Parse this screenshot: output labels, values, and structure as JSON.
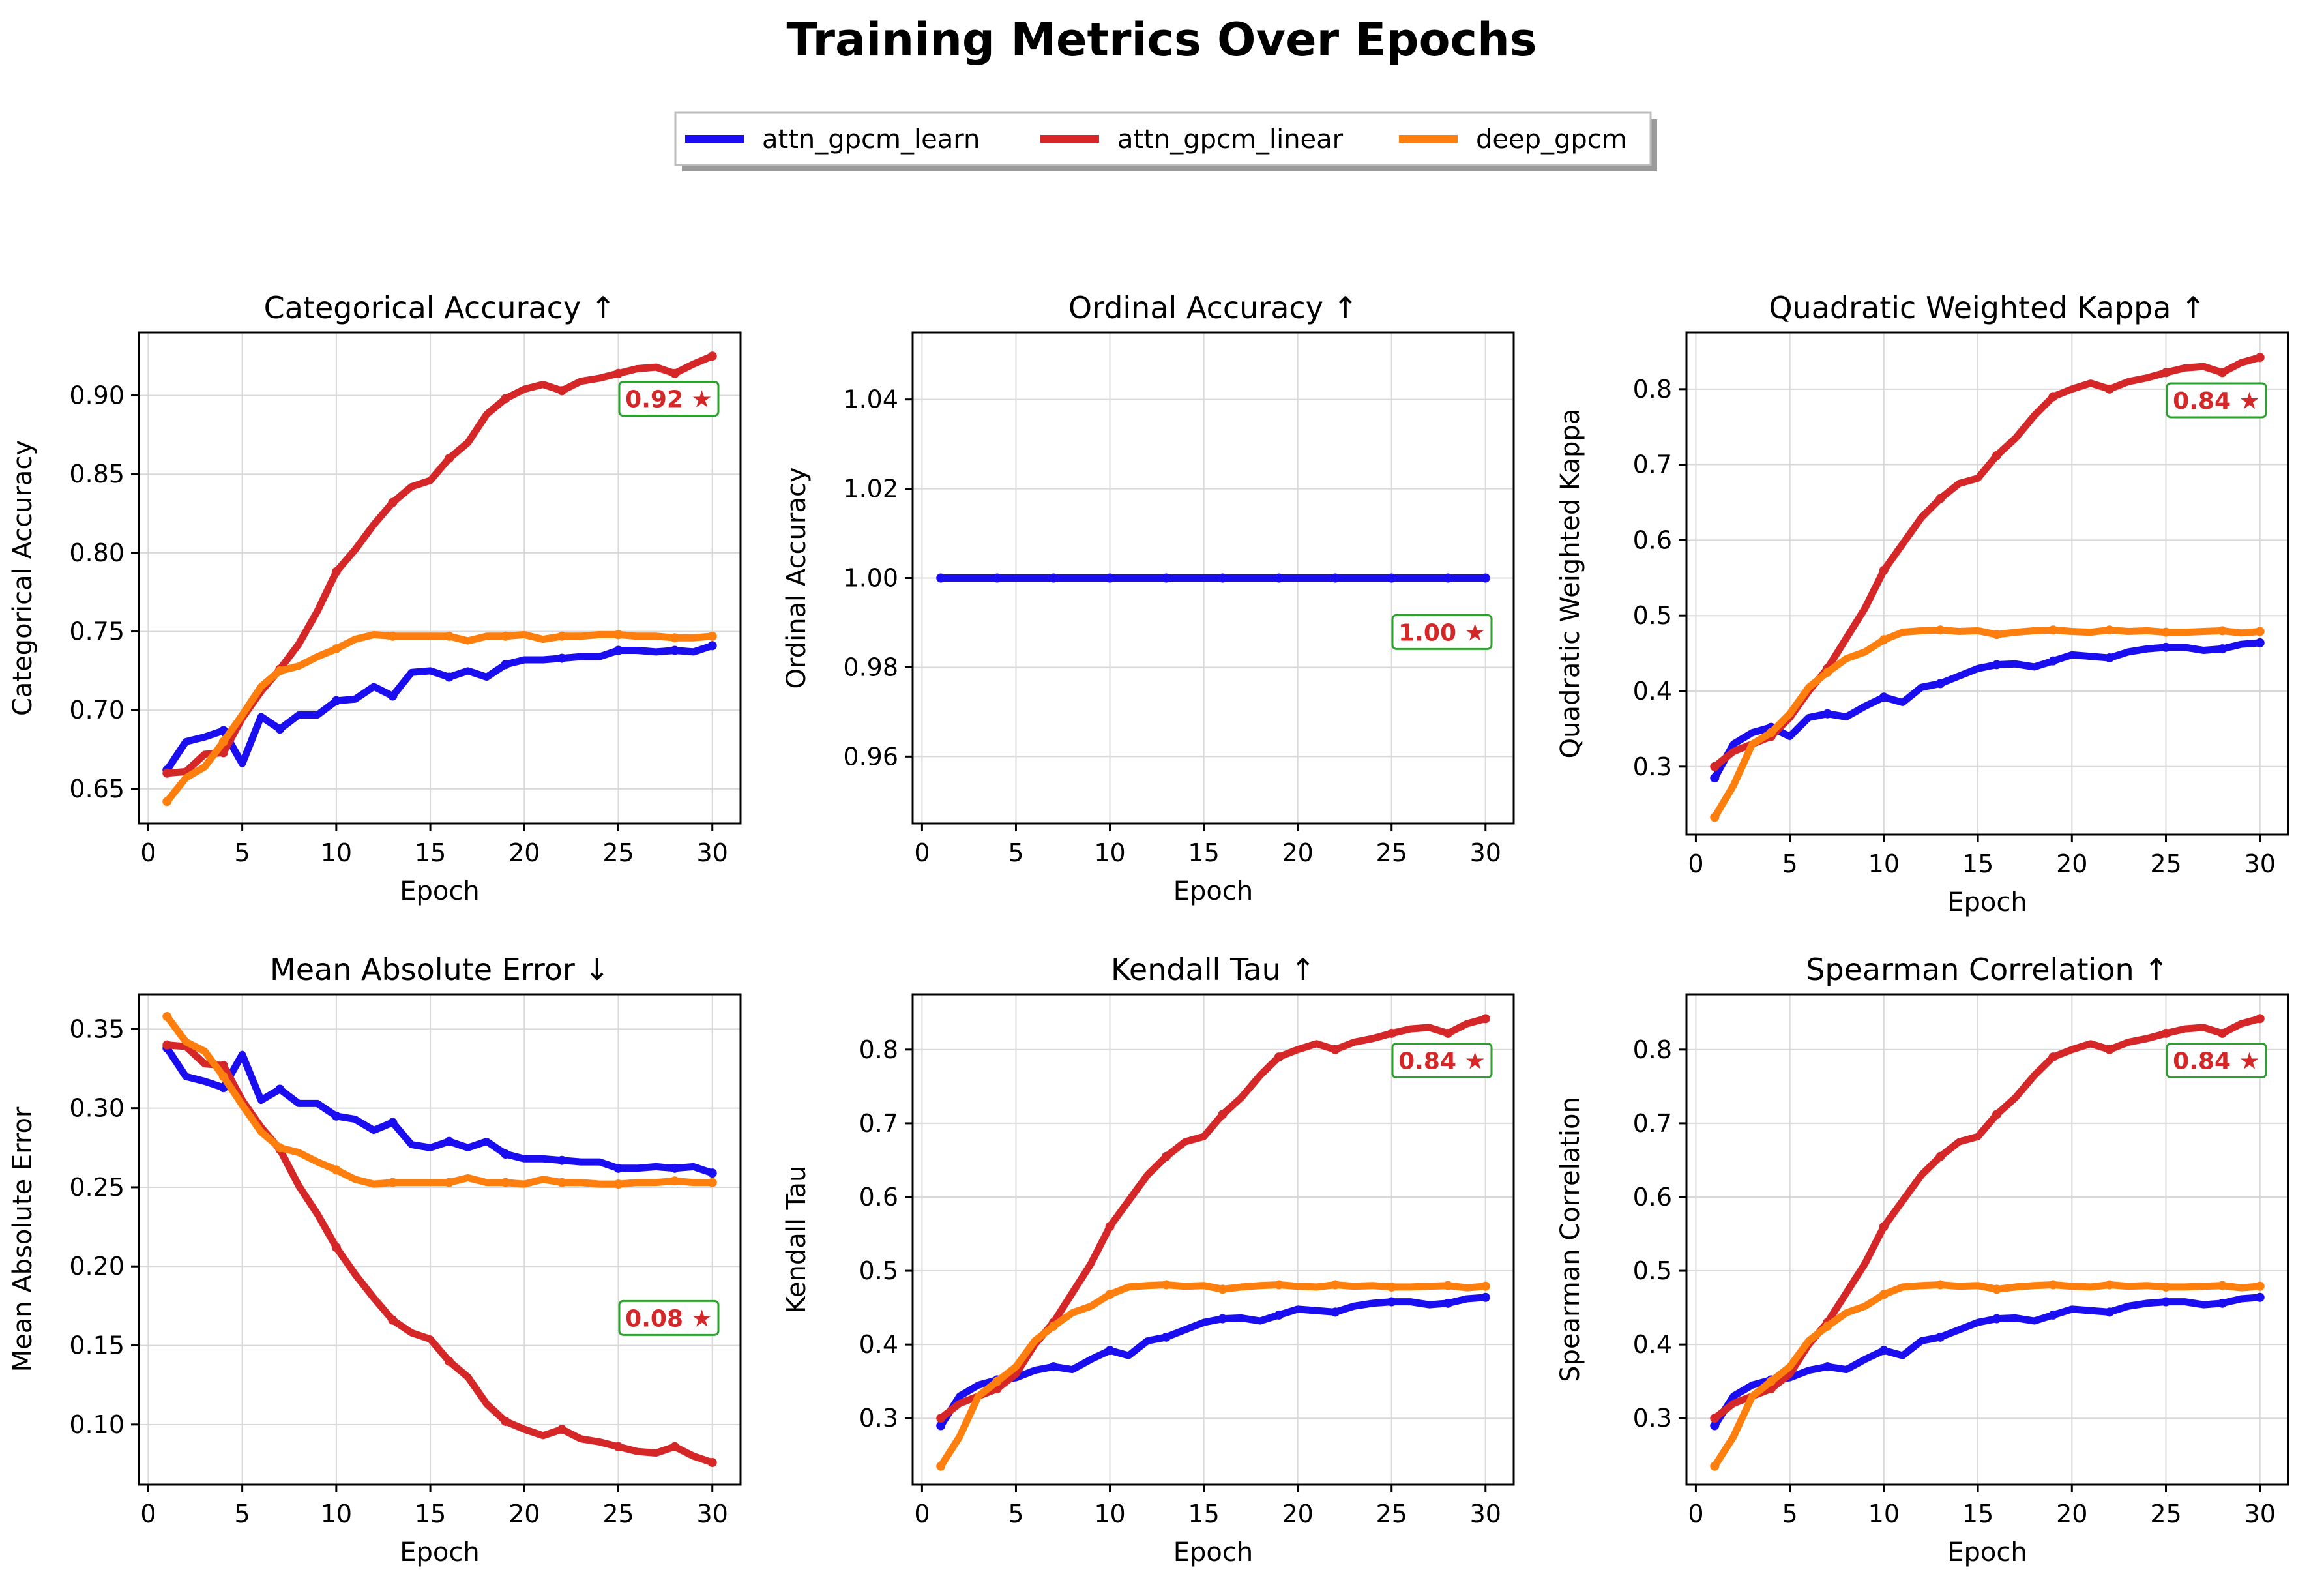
{
  "figure": {
    "title": "Training Metrics Over Epochs"
  },
  "legend": {
    "placement": "top-center",
    "entries": [
      {
        "name": "attn_gpcm_learn",
        "color": "#1a0df0"
      },
      {
        "name": "attn_gpcm_linear",
        "color": "#d62728"
      },
      {
        "name": "deep_gpcm",
        "color": "#ff7f0e"
      }
    ]
  },
  "colors": {
    "attn_gpcm_learn": "#1a0df0",
    "attn_gpcm_linear": "#d62728",
    "deep_gpcm": "#ff7f0e",
    "best_text": "#d62728",
    "best_border": "#2ca02c",
    "grid": "#d9d9d9"
  },
  "chart_data": [
    {
      "type": "line",
      "title": "Categorical Accuracy ↑",
      "xlabel": "Epoch",
      "ylabel": "Categorical Accuracy",
      "grid": true,
      "xlim": [
        -0.5,
        31.5
      ],
      "ylim": [
        0.628,
        0.94
      ],
      "xticks": [
        0,
        5,
        10,
        15,
        20,
        25,
        30
      ],
      "yticks": [
        0.65,
        0.7,
        0.75,
        0.8,
        0.85,
        0.9
      ],
      "tick_decimals": 2,
      "best_label": "0.92 ★",
      "x": [
        1,
        2,
        3,
        4,
        5,
        6,
        7,
        8,
        9,
        10,
        11,
        12,
        13,
        14,
        15,
        16,
        17,
        18,
        19,
        20,
        21,
        22,
        23,
        24,
        25,
        26,
        27,
        28,
        29,
        30
      ],
      "series": [
        {
          "name": "attn_gpcm_learn",
          "values": [
            0.662,
            0.68,
            0.683,
            0.687,
            0.666,
            0.696,
            0.688,
            0.697,
            0.697,
            0.706,
            0.707,
            0.715,
            0.709,
            0.724,
            0.725,
            0.721,
            0.725,
            0.721,
            0.729,
            0.732,
            0.732,
            0.733,
            0.734,
            0.734,
            0.738,
            0.738,
            0.737,
            0.738,
            0.737,
            0.741
          ]
        },
        {
          "name": "attn_gpcm_linear",
          "values": [
            0.66,
            0.661,
            0.672,
            0.673,
            0.695,
            0.712,
            0.726,
            0.742,
            0.763,
            0.788,
            0.802,
            0.818,
            0.832,
            0.842,
            0.846,
            0.86,
            0.87,
            0.888,
            0.898,
            0.904,
            0.907,
            0.903,
            0.909,
            0.911,
            0.914,
            0.917,
            0.918,
            0.914,
            0.92,
            0.925
          ]
        },
        {
          "name": "deep_gpcm",
          "values": [
            0.642,
            0.657,
            0.664,
            0.68,
            0.697,
            0.715,
            0.725,
            0.728,
            0.734,
            0.739,
            0.745,
            0.748,
            0.747,
            0.747,
            0.747,
            0.747,
            0.744,
            0.747,
            0.747,
            0.748,
            0.745,
            0.747,
            0.747,
            0.748,
            0.748,
            0.747,
            0.747,
            0.746,
            0.746,
            0.747
          ]
        }
      ]
    },
    {
      "type": "line",
      "title": "Ordinal Accuracy ↑",
      "xlabel": "Epoch",
      "ylabel": "Ordinal Accuracy",
      "grid": true,
      "xlim": [
        -0.5,
        31.5
      ],
      "ylim": [
        0.945,
        1.055
      ],
      "xticks": [
        0,
        5,
        10,
        15,
        20,
        25,
        30
      ],
      "yticks": [
        0.96,
        0.98,
        1.0,
        1.02,
        1.04
      ],
      "tick_decimals": 2,
      "best_label": "1.00 ★",
      "x": [
        1,
        2,
        3,
        4,
        5,
        6,
        7,
        8,
        9,
        10,
        11,
        12,
        13,
        14,
        15,
        16,
        17,
        18,
        19,
        20,
        21,
        22,
        23,
        24,
        25,
        26,
        27,
        28,
        29,
        30
      ],
      "series": [
        {
          "name": "attn_gpcm_learn",
          "values": [
            1.0,
            1.0,
            1.0,
            1.0,
            1.0,
            1.0,
            1.0,
            1.0,
            1.0,
            1.0,
            1.0,
            1.0,
            1.0,
            1.0,
            1.0,
            1.0,
            1.0,
            1.0,
            1.0,
            1.0,
            1.0,
            1.0,
            1.0,
            1.0,
            1.0,
            1.0,
            1.0,
            1.0,
            1.0,
            1.0
          ]
        }
      ]
    },
    {
      "type": "line",
      "title": "Quadratic Weighted Kappa ↑",
      "xlabel": "Epoch",
      "ylabel": "Quadratic Weighted Kappa",
      "grid": true,
      "xlim": [
        -0.5,
        31.5
      ],
      "ylim": [
        0.21,
        0.875
      ],
      "xticks": [
        0,
        5,
        10,
        15,
        20,
        25,
        30
      ],
      "yticks": [
        0.3,
        0.4,
        0.5,
        0.6,
        0.7,
        0.8
      ],
      "tick_decimals": 1,
      "best_label": "0.84 ★",
      "x": [
        1,
        2,
        3,
        4,
        5,
        6,
        7,
        8,
        9,
        10,
        11,
        12,
        13,
        14,
        15,
        16,
        17,
        18,
        19,
        20,
        21,
        22,
        23,
        24,
        25,
        26,
        27,
        28,
        29,
        30
      ],
      "series": [
        {
          "name": "attn_gpcm_learn",
          "values": [
            0.285,
            0.33,
            0.345,
            0.352,
            0.34,
            0.365,
            0.37,
            0.366,
            0.38,
            0.392,
            0.385,
            0.405,
            0.41,
            0.42,
            0.43,
            0.435,
            0.436,
            0.432,
            0.44,
            0.448,
            0.446,
            0.444,
            0.452,
            0.456,
            0.458,
            0.458,
            0.454,
            0.456,
            0.462,
            0.464
          ]
        },
        {
          "name": "attn_gpcm_linear",
          "values": [
            0.3,
            0.32,
            0.33,
            0.34,
            0.365,
            0.4,
            0.43,
            0.47,
            0.51,
            0.56,
            0.595,
            0.63,
            0.655,
            0.675,
            0.682,
            0.712,
            0.735,
            0.765,
            0.79,
            0.8,
            0.808,
            0.8,
            0.81,
            0.815,
            0.822,
            0.828,
            0.83,
            0.822,
            0.835,
            0.842
          ]
        },
        {
          "name": "deep_gpcm",
          "values": [
            0.233,
            0.275,
            0.33,
            0.345,
            0.37,
            0.405,
            0.425,
            0.443,
            0.452,
            0.468,
            0.478,
            0.48,
            0.481,
            0.479,
            0.48,
            0.475,
            0.478,
            0.48,
            0.481,
            0.479,
            0.478,
            0.481,
            0.479,
            0.48,
            0.478,
            0.478,
            0.479,
            0.48,
            0.477,
            0.479
          ]
        }
      ]
    },
    {
      "type": "line",
      "title": "Mean Absolute Error ↓",
      "xlabel": "Epoch",
      "ylabel": "Mean Absolute Error",
      "grid": true,
      "xlim": [
        -0.5,
        31.5
      ],
      "ylim": [
        0.062,
        0.372
      ],
      "xticks": [
        0,
        5,
        10,
        15,
        20,
        25,
        30
      ],
      "yticks": [
        0.1,
        0.15,
        0.2,
        0.25,
        0.3,
        0.35
      ],
      "tick_decimals": 2,
      "best_label": "0.08 ★",
      "x": [
        1,
        2,
        3,
        4,
        5,
        6,
        7,
        8,
        9,
        10,
        11,
        12,
        13,
        14,
        15,
        16,
        17,
        18,
        19,
        20,
        21,
        22,
        23,
        24,
        25,
        26,
        27,
        28,
        29,
        30
      ],
      "series": [
        {
          "name": "attn_gpcm_learn",
          "values": [
            0.338,
            0.32,
            0.317,
            0.313,
            0.334,
            0.305,
            0.312,
            0.303,
            0.303,
            0.295,
            0.293,
            0.286,
            0.291,
            0.277,
            0.275,
            0.279,
            0.275,
            0.279,
            0.271,
            0.268,
            0.268,
            0.267,
            0.266,
            0.266,
            0.262,
            0.262,
            0.263,
            0.262,
            0.263,
            0.259
          ]
        },
        {
          "name": "attn_gpcm_linear",
          "values": [
            0.34,
            0.339,
            0.328,
            0.327,
            0.305,
            0.288,
            0.274,
            0.251,
            0.233,
            0.212,
            0.195,
            0.18,
            0.166,
            0.158,
            0.154,
            0.14,
            0.13,
            0.113,
            0.102,
            0.097,
            0.093,
            0.097,
            0.091,
            0.089,
            0.086,
            0.083,
            0.082,
            0.086,
            0.08,
            0.076
          ]
        },
        {
          "name": "deep_gpcm",
          "values": [
            0.358,
            0.342,
            0.336,
            0.32,
            0.302,
            0.285,
            0.275,
            0.272,
            0.266,
            0.261,
            0.255,
            0.252,
            0.253,
            0.253,
            0.253,
            0.253,
            0.256,
            0.253,
            0.253,
            0.252,
            0.255,
            0.253,
            0.253,
            0.252,
            0.252,
            0.253,
            0.253,
            0.254,
            0.253,
            0.253
          ]
        }
      ]
    },
    {
      "type": "line",
      "title": "Kendall Tau ↑",
      "xlabel": "Epoch",
      "ylabel": "Kendall Tau",
      "grid": true,
      "xlim": [
        -0.5,
        31.5
      ],
      "ylim": [
        0.21,
        0.875
      ],
      "xticks": [
        0,
        5,
        10,
        15,
        20,
        25,
        30
      ],
      "yticks": [
        0.3,
        0.4,
        0.5,
        0.6,
        0.7,
        0.8
      ],
      "tick_decimals": 1,
      "best_label": "0.84 ★",
      "x": [
        1,
        2,
        3,
        4,
        5,
        6,
        7,
        8,
        9,
        10,
        11,
        12,
        13,
        14,
        15,
        16,
        17,
        18,
        19,
        20,
        21,
        22,
        23,
        24,
        25,
        26,
        27,
        28,
        29,
        30
      ],
      "series": [
        {
          "name": "attn_gpcm_learn",
          "values": [
            0.29,
            0.33,
            0.345,
            0.352,
            0.355,
            0.365,
            0.37,
            0.366,
            0.38,
            0.392,
            0.385,
            0.405,
            0.41,
            0.42,
            0.43,
            0.435,
            0.436,
            0.432,
            0.44,
            0.448,
            0.446,
            0.444,
            0.452,
            0.456,
            0.458,
            0.458,
            0.454,
            0.456,
            0.462,
            0.464
          ]
        },
        {
          "name": "attn_gpcm_linear",
          "values": [
            0.3,
            0.32,
            0.33,
            0.34,
            0.36,
            0.4,
            0.43,
            0.47,
            0.51,
            0.56,
            0.595,
            0.63,
            0.655,
            0.675,
            0.682,
            0.712,
            0.735,
            0.765,
            0.79,
            0.8,
            0.808,
            0.8,
            0.81,
            0.815,
            0.822,
            0.828,
            0.83,
            0.822,
            0.835,
            0.842
          ]
        },
        {
          "name": "deep_gpcm",
          "values": [
            0.235,
            0.275,
            0.33,
            0.35,
            0.37,
            0.405,
            0.425,
            0.443,
            0.452,
            0.468,
            0.478,
            0.48,
            0.481,
            0.479,
            0.48,
            0.475,
            0.478,
            0.48,
            0.481,
            0.479,
            0.478,
            0.481,
            0.479,
            0.48,
            0.478,
            0.478,
            0.479,
            0.48,
            0.477,
            0.479
          ]
        }
      ]
    },
    {
      "type": "line",
      "title": "Spearman Correlation ↑",
      "xlabel": "Epoch",
      "ylabel": "Spearman Correlation",
      "grid": true,
      "xlim": [
        -0.5,
        31.5
      ],
      "ylim": [
        0.21,
        0.875
      ],
      "xticks": [
        0,
        5,
        10,
        15,
        20,
        25,
        30
      ],
      "yticks": [
        0.3,
        0.4,
        0.5,
        0.6,
        0.7,
        0.8
      ],
      "tick_decimals": 1,
      "best_label": "0.84 ★",
      "x": [
        1,
        2,
        3,
        4,
        5,
        6,
        7,
        8,
        9,
        10,
        11,
        12,
        13,
        14,
        15,
        16,
        17,
        18,
        19,
        20,
        21,
        22,
        23,
        24,
        25,
        26,
        27,
        28,
        29,
        30
      ],
      "series": [
        {
          "name": "attn_gpcm_learn",
          "values": [
            0.29,
            0.33,
            0.345,
            0.352,
            0.355,
            0.365,
            0.37,
            0.366,
            0.38,
            0.392,
            0.385,
            0.405,
            0.41,
            0.42,
            0.43,
            0.435,
            0.436,
            0.432,
            0.44,
            0.448,
            0.446,
            0.444,
            0.452,
            0.456,
            0.458,
            0.458,
            0.454,
            0.456,
            0.462,
            0.464
          ]
        },
        {
          "name": "attn_gpcm_linear",
          "values": [
            0.3,
            0.32,
            0.33,
            0.34,
            0.36,
            0.4,
            0.43,
            0.47,
            0.51,
            0.56,
            0.595,
            0.63,
            0.655,
            0.675,
            0.682,
            0.712,
            0.735,
            0.765,
            0.79,
            0.8,
            0.808,
            0.8,
            0.81,
            0.815,
            0.822,
            0.828,
            0.83,
            0.822,
            0.835,
            0.842
          ]
        },
        {
          "name": "deep_gpcm",
          "values": [
            0.235,
            0.275,
            0.33,
            0.35,
            0.37,
            0.405,
            0.425,
            0.443,
            0.452,
            0.468,
            0.478,
            0.48,
            0.481,
            0.479,
            0.48,
            0.475,
            0.478,
            0.48,
            0.481,
            0.479,
            0.478,
            0.481,
            0.479,
            0.48,
            0.478,
            0.478,
            0.479,
            0.48,
            0.477,
            0.479
          ]
        }
      ]
    }
  ]
}
